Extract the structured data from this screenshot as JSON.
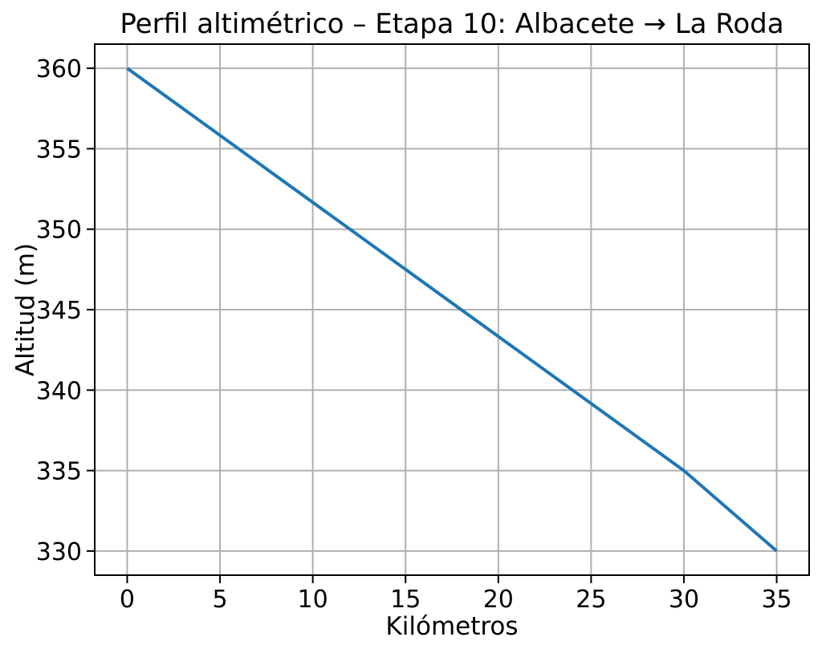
{
  "chart_data": {
    "type": "line",
    "title": "Perfil altimétrico – Etapa 10: Albacete → La Roda",
    "xlabel": "Kilómetros",
    "ylabel": "Altitud (m)",
    "x": [
      0,
      30,
      35
    ],
    "y": [
      360,
      335,
      330
    ],
    "xticks": [
      0,
      5,
      10,
      15,
      20,
      25,
      30,
      35
    ],
    "yticks": [
      330,
      335,
      340,
      345,
      350,
      355,
      360
    ],
    "xlim": [
      -1.75,
      36.75
    ],
    "ylim": [
      328.5,
      361.5
    ],
    "grid": true,
    "legend": false,
    "line_color": "#1f77b4",
    "grid_color": "#b0b0b0",
    "spine_color": "#000000",
    "background": "#ffffff"
  }
}
